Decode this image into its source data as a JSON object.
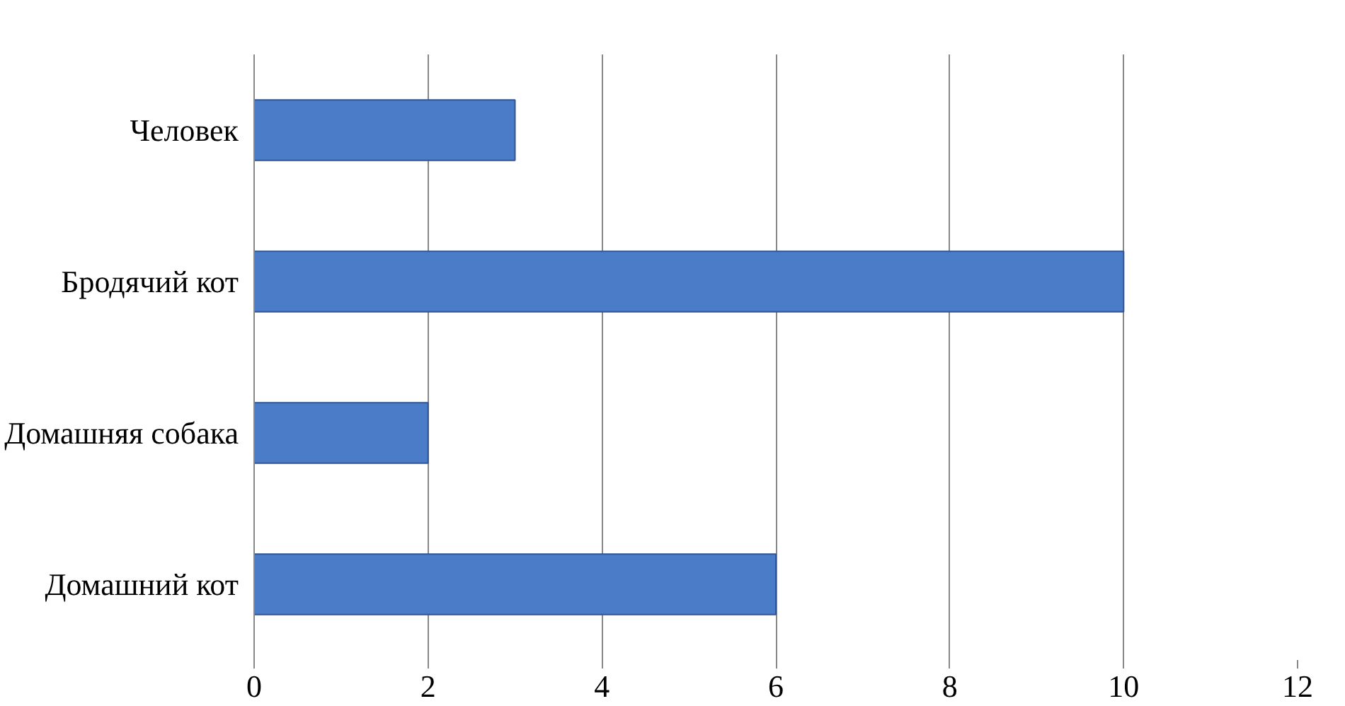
{
  "chart_data": {
    "type": "bar",
    "orientation": "horizontal",
    "categories": [
      "Человек",
      "Бродячий кот",
      "Домашняя собака",
      "Домашний кот"
    ],
    "values": [
      3,
      10,
      2,
      6
    ],
    "color": "#4a7cc7",
    "xlim": [
      0,
      12
    ],
    "xticks": [
      0,
      2,
      4,
      6,
      8,
      10,
      12
    ],
    "grid": "x"
  }
}
